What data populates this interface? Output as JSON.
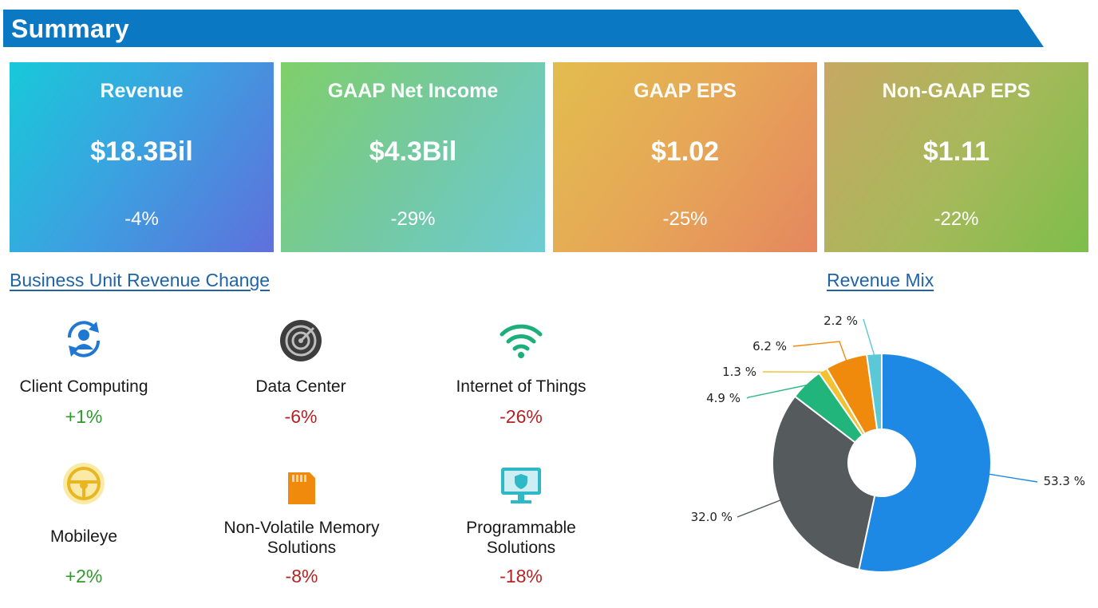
{
  "header": {
    "title": "Summary",
    "color": "#0a78c2"
  },
  "metrics": [
    {
      "label": "Revenue",
      "value": "$18.3Bil",
      "change": "-4%"
    },
    {
      "label": "GAAP Net Income",
      "value": "$4.3Bil",
      "change": "-29%"
    },
    {
      "label": "GAAP EPS",
      "value": "$1.02",
      "change": "-25%"
    },
    {
      "label": "Non-GAAP EPS",
      "value": "$1.11",
      "change": "-22%"
    }
  ],
  "business_units": {
    "title": "Business Unit Revenue Change",
    "items": [
      {
        "name": "Client Computing",
        "change": "+1%",
        "icon": "user-sync-icon"
      },
      {
        "name": "Data Center",
        "change": "-6%",
        "icon": "radar-icon"
      },
      {
        "name": "Internet of Things",
        "change": "-26%",
        "icon": "wifi-icon"
      },
      {
        "name": "Mobileye",
        "change": "+2%",
        "icon": "steering-wheel-icon"
      },
      {
        "name": "Non-Volatile Memory",
        "name2": "Solutions",
        "change": "-8%",
        "icon": "memory-card-icon"
      },
      {
        "name": "Programmable",
        "name2": "Solutions",
        "change": "-18%",
        "icon": "monitor-shield-icon"
      }
    ]
  },
  "chart_data": {
    "type": "pie",
    "title": "Revenue Mix",
    "unit": "%",
    "slices": [
      {
        "value": 53.3,
        "label": "53.3 %",
        "color": "#1e88e5"
      },
      {
        "value": 32.0,
        "label": "32.0 %",
        "color": "#555a5c"
      },
      {
        "value": 4.9,
        "label": "4.9 %",
        "color": "#21b57c"
      },
      {
        "value": 1.3,
        "label": "1.3 %",
        "color": "#f2c233"
      },
      {
        "value": 6.2,
        "label": "6.2 %",
        "color": "#f08a0c"
      },
      {
        "value": 2.2,
        "label": "2.2 %",
        "color": "#5bc8d8"
      }
    ]
  }
}
